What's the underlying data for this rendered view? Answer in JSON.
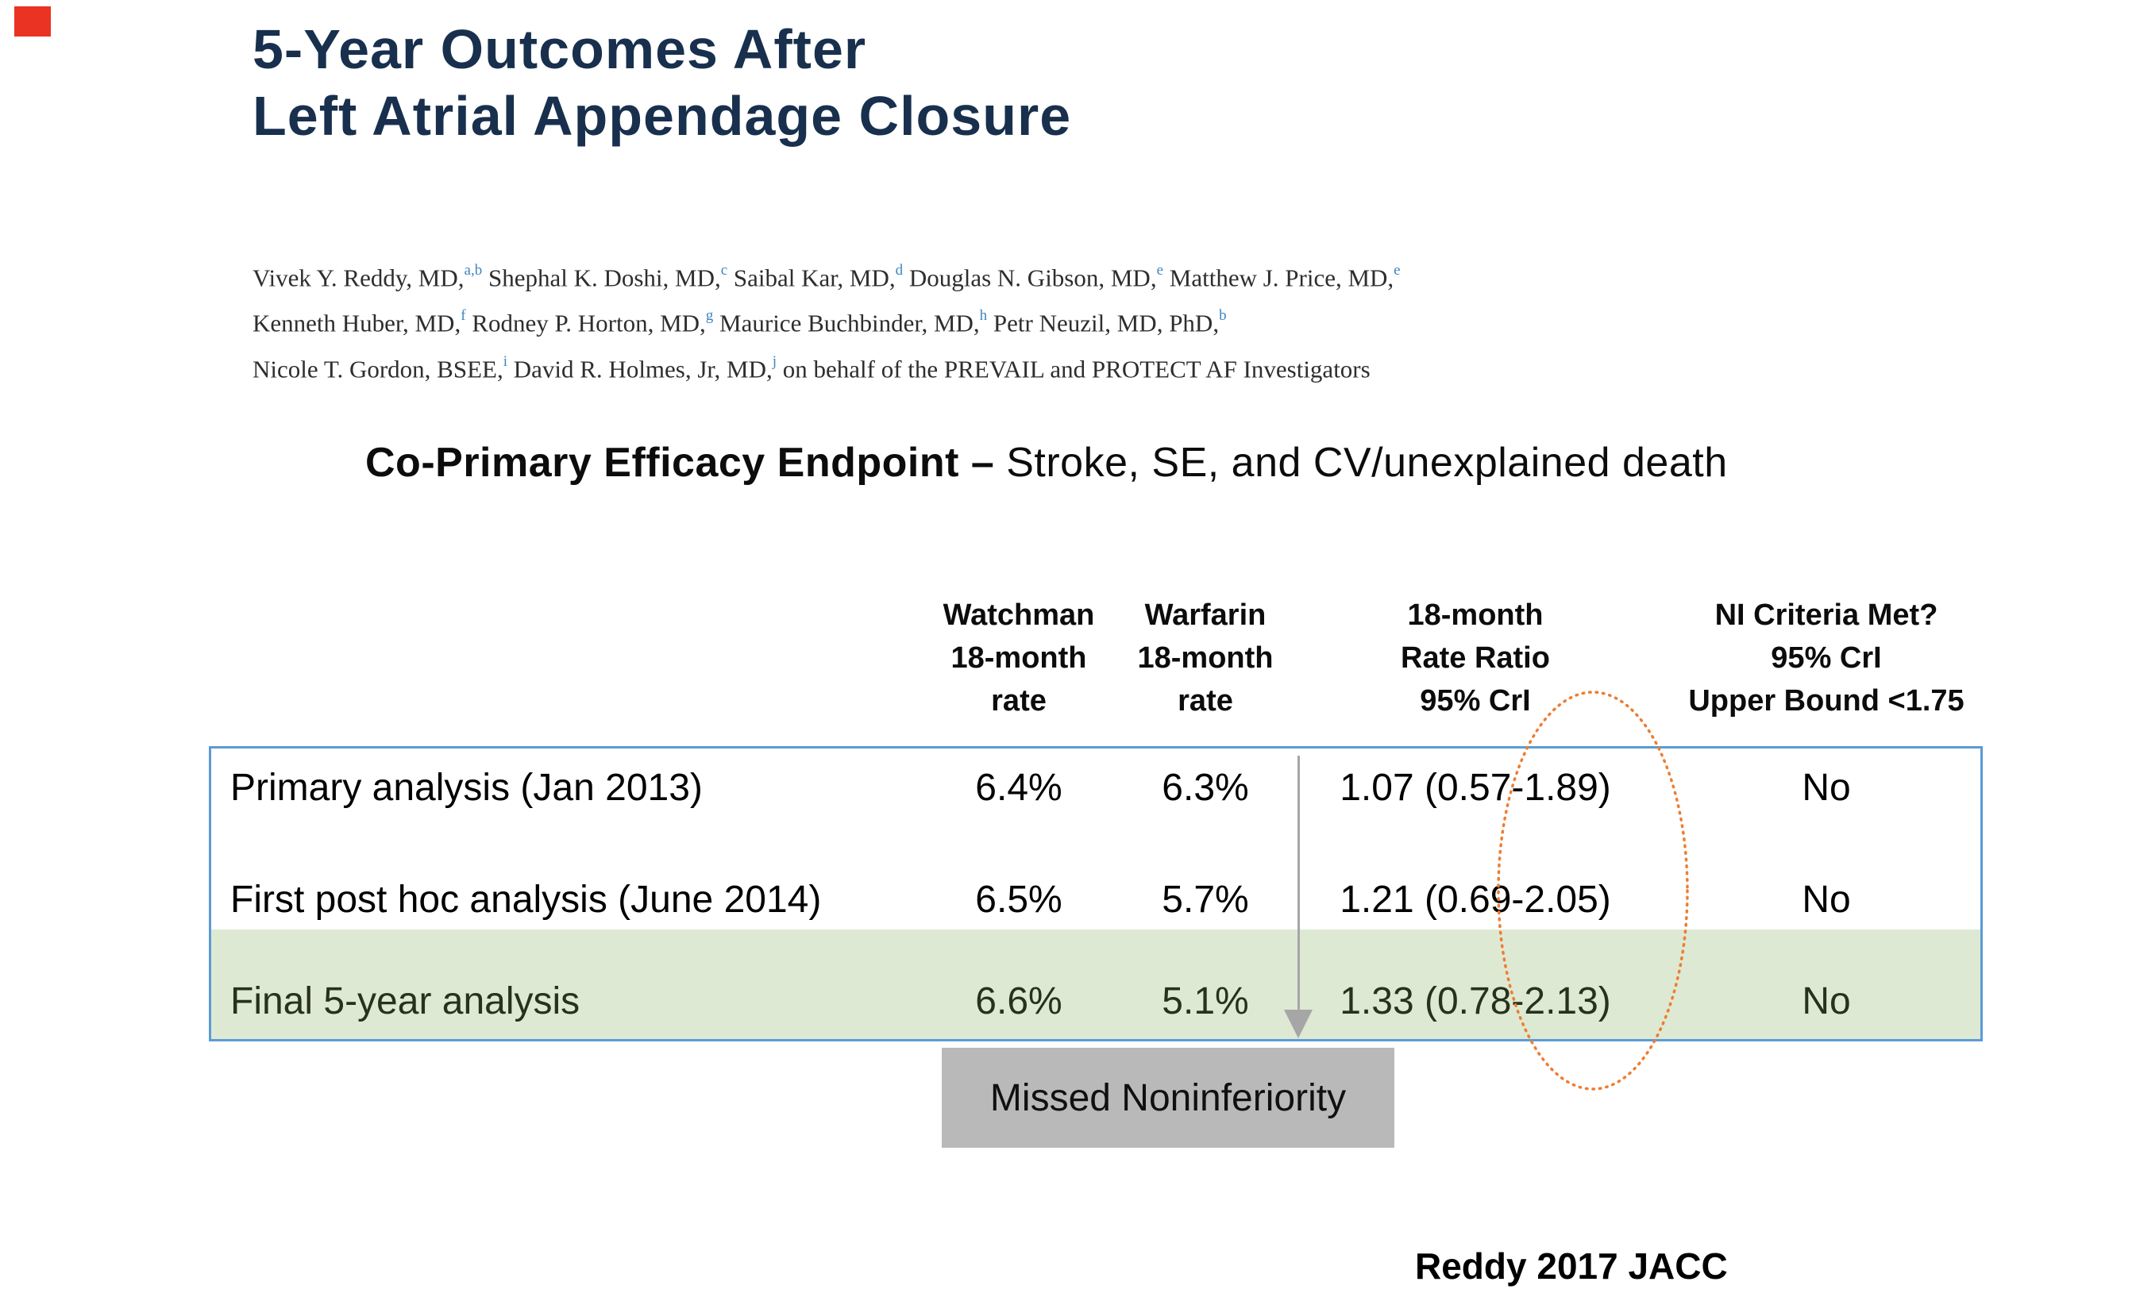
{
  "colors": {
    "c-title": "#18304d",
    "c-sup": "#3f86c0",
    "c-author": "#2e2e2e",
    "c-border": "#5b9bd5",
    "c-green": "#dee9d3",
    "c-row3": "#26321c",
    "c-graybox": "#b9b9b9",
    "c-arrow": "#a6a6a6",
    "c-orange": "#ed7d31",
    "c-red": "#ea3323"
  },
  "title": {
    "line1": "5-Year Outcomes After",
    "line2": "Left Atrial Appendage Closure"
  },
  "authors": {
    "lines": [
      [
        {
          "text": "Vivek Y. Reddy, MD,"
        },
        {
          "sup": "a,b"
        },
        {
          "text": " Shephal K. Doshi, MD,"
        },
        {
          "sup": "c"
        },
        {
          "text": " Saibal Kar, MD,"
        },
        {
          "sup": "d"
        },
        {
          "text": " Douglas N. Gibson, MD,"
        },
        {
          "sup": "e"
        },
        {
          "text": " Matthew J. Price, MD,"
        },
        {
          "sup": "e"
        }
      ],
      [
        {
          "text": "Kenneth Huber, MD,"
        },
        {
          "sup": "f"
        },
        {
          "text": " Rodney P. Horton, MD,"
        },
        {
          "sup": "g"
        },
        {
          "text": " Maurice Buchbinder, MD,"
        },
        {
          "sup": "h"
        },
        {
          "text": " Petr Neuzil, MD, PhD,"
        },
        {
          "sup": "b"
        }
      ],
      [
        {
          "text": "Nicole T. Gordon, BSEE,"
        },
        {
          "sup": "i"
        },
        {
          "text": " David R. Holmes, Jr, MD,"
        },
        {
          "sup": "j"
        },
        {
          "text": " on behalf of the PREVAIL and PROTECT AF Investigators"
        }
      ]
    ]
  },
  "heading": {
    "bold": "Co-Primary Efficacy Endpoint – ",
    "rest": "Stroke, SE, and CV/unexplained death"
  },
  "table": {
    "headers": [
      {
        "lines": [
          "Watchman",
          "18-month",
          "rate"
        ]
      },
      {
        "lines": [
          "Warfarin",
          "18-month",
          "rate"
        ]
      },
      {
        "lines": [
          "18-month",
          "Rate Ratio",
          "95% CrI"
        ]
      },
      {
        "lines": [
          "NI Criteria Met?",
          "95% CrI",
          "Upper Bound <1.75"
        ]
      }
    ],
    "rows": [
      {
        "label": "Primary analysis (Jan 2013)",
        "watchman_rate": "6.4%",
        "warfarin_rate": "6.3%",
        "rate_ratio": "1.07 (0.57-1.89)",
        "ni_met": "No",
        "highlight": false
      },
      {
        "label": "First post hoc analysis (June 2014)",
        "watchman_rate": "6.5%",
        "warfarin_rate": "5.7%",
        "rate_ratio": "1.21 (0.69-2.05)",
        "ni_met": "No",
        "highlight": false
      },
      {
        "label": "Final 5-year analysis",
        "watchman_rate": "6.6%",
        "warfarin_rate": "5.1%",
        "rate_ratio": "1.33 (0.78-2.13)",
        "ni_met": "No",
        "highlight": true
      }
    ]
  },
  "annotations": {
    "missed_label": "Missed Noninferiority"
  },
  "footer": {
    "citation": "Reddy 2017 JACC"
  }
}
